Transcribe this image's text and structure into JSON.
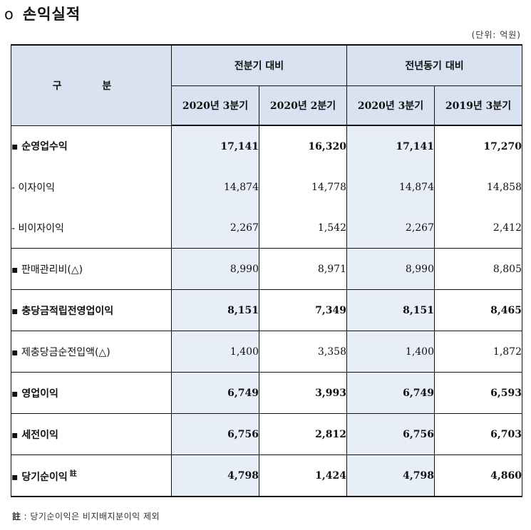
{
  "title": {
    "bullet": "o",
    "text": "손익실적"
  },
  "unit": "(단위: 억원)",
  "table": {
    "header": {
      "gubun": "구 분",
      "group1": "전분기 대비",
      "group2": "전년동기 대비",
      "cols": [
        "2020년 3분기",
        "2020년 2분기",
        "2020년 3분기",
        "2019년 3분기"
      ]
    },
    "rows": [
      {
        "bullet": "▪",
        "label": "순영업수익",
        "values": [
          "17,141",
          "16,320",
          "17,141",
          "17,270"
        ]
      },
      {
        "bullet": "-",
        "label": "이자이익",
        "values": [
          "14,874",
          "14,778",
          "14,874",
          "14,858"
        ]
      },
      {
        "bullet": "-",
        "label": "비이자이익",
        "values": [
          "2,267",
          "1,542",
          "2,267",
          "2,412"
        ]
      },
      {
        "bullet": "▪",
        "label": "판매관리비(△)",
        "values": [
          "8,990",
          "8,971",
          "8,990",
          "8,805"
        ]
      },
      {
        "bullet": "▪",
        "label": "충당금적립전영업이익",
        "values": [
          "8,151",
          "7,349",
          "8,151",
          "8,465"
        ]
      },
      {
        "bullet": "▪",
        "label": "제충당금순전입액(△)",
        "values": [
          "1,400",
          "3,358",
          "1,400",
          "1,872"
        ]
      },
      {
        "bullet": "▪",
        "label": "영업이익",
        "values": [
          "6,749",
          "3,993",
          "6,749",
          "6,593"
        ]
      },
      {
        "bullet": "▪",
        "label": "세전이익",
        "values": [
          "6,756",
          "2,812",
          "6,756",
          "6,703"
        ]
      },
      {
        "bullet": "▪",
        "label": "당기순이익",
        "note": "註",
        "values": [
          "4,798",
          "1,424",
          "4,798",
          "4,860"
        ]
      }
    ]
  },
  "footnote": {
    "mark": "註",
    "text": ": 당기순이익은 비지배지분이익 제외"
  }
}
